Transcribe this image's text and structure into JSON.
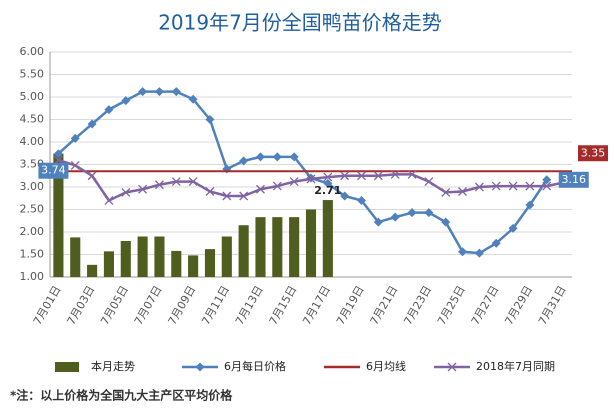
{
  "chart_data": {
    "type": "combo",
    "title": "2019年7月份全国鸭苗价格走势",
    "note": "*注：以上价格为全国九大主产区平均价格",
    "categories": [
      "7月01日",
      null,
      "7月03日",
      null,
      "7月05日",
      null,
      "7月07日",
      null,
      "7月09日",
      null,
      "7月11日",
      null,
      "7月13日",
      null,
      "7月15日",
      null,
      "7月17日",
      null,
      "7月19日",
      null,
      "7月21日",
      null,
      "7月23日",
      null,
      "7月25日",
      null,
      "7月27日",
      null,
      "7月29日",
      null,
      "7月31日"
    ],
    "ylim": [
      1,
      6
    ],
    "yticks": [
      {
        "value": 1,
        "label": "1.00"
      },
      {
        "value": 1.5,
        "label": "1.50"
      },
      {
        "value": 2,
        "label": "2.00"
      },
      {
        "value": 2.5,
        "label": "2.50"
      },
      {
        "value": 3,
        "label": "3.00"
      },
      {
        "value": 3.5,
        "label": "3.50"
      },
      {
        "value": 4,
        "label": "4.00"
      },
      {
        "value": 4.5,
        "label": "4.50"
      },
      {
        "value": 5,
        "label": "5.00"
      },
      {
        "value": 5.5,
        "label": "5.50"
      },
      {
        "value": 6,
        "label": "6.00"
      }
    ],
    "grid": true,
    "legend": "bottom",
    "series": [
      {
        "name": "本月走势",
        "type": "bar",
        "color": "#4f5d1f",
        "values": [
          3.74,
          1.88,
          1.27,
          1.57,
          1.8,
          1.9,
          1.9,
          1.58,
          1.48,
          1.62,
          1.9,
          2.15,
          2.33,
          2.33,
          2.33,
          2.5,
          2.71,
          null,
          null,
          null,
          null,
          null,
          null,
          null,
          null,
          null,
          null,
          null,
          null,
          null,
          null
        ],
        "value_labels": [
          null,
          null,
          null,
          null,
          null,
          null,
          null,
          null,
          null,
          null,
          null,
          null,
          null,
          null,
          null,
          null,
          "2.71",
          null,
          null,
          null,
          null,
          null,
          null,
          null,
          null,
          null,
          null,
          null,
          null,
          null,
          null
        ]
      },
      {
        "name": "6月每日价格",
        "type": "line",
        "marker": "diamond",
        "color": "#4f81bd",
        "values": [
          3.74,
          4.08,
          4.4,
          4.72,
          4.92,
          5.12,
          5.12,
          5.12,
          4.95,
          4.5,
          3.4,
          3.58,
          3.67,
          3.67,
          3.67,
          3.2,
          3.08,
          2.8,
          2.7,
          2.22,
          2.33,
          2.43,
          2.43,
          2.22,
          1.56,
          1.53,
          1.75,
          2.08,
          2.6,
          3.16,
          null
        ],
        "value_labels": [
          "3.74",
          null,
          null,
          null,
          null,
          null,
          null,
          null,
          null,
          null,
          null,
          null,
          null,
          null,
          null,
          null,
          null,
          null,
          null,
          null,
          null,
          null,
          null,
          null,
          null,
          null,
          null,
          null,
          null,
          "3.16",
          null
        ]
      },
      {
        "name": "6月均线",
        "type": "line",
        "marker": "none",
        "color": "#a52a2a",
        "values": [
          3.35,
          3.35,
          3.35,
          3.35,
          3.35,
          3.35,
          3.35,
          3.35,
          3.35,
          3.35,
          3.35,
          3.35,
          3.35,
          3.35,
          3.35,
          3.35,
          3.35,
          3.35,
          3.35,
          3.35,
          3.35,
          3.35,
          3.35,
          3.35,
          3.35,
          3.35,
          3.35,
          3.35,
          3.35,
          3.35,
          3.35
        ],
        "value_labels": [
          null,
          null,
          null,
          null,
          null,
          null,
          null,
          null,
          null,
          null,
          null,
          null,
          null,
          null,
          null,
          null,
          null,
          null,
          null,
          null,
          null,
          null,
          null,
          null,
          null,
          null,
          null,
          null,
          null,
          null,
          "3.35"
        ]
      },
      {
        "name": "2018年7月同期",
        "type": "line",
        "marker": "x",
        "color": "#8064a2",
        "values": [
          3.6,
          3.48,
          3.25,
          2.7,
          2.88,
          2.95,
          3.05,
          3.12,
          3.12,
          2.9,
          2.8,
          2.8,
          2.95,
          3.02,
          3.12,
          3.18,
          3.22,
          3.25,
          3.25,
          3.25,
          3.28,
          3.28,
          3.12,
          2.88,
          2.9,
          3.0,
          3.02,
          3.02,
          3.02,
          3.02,
          3.1
        ]
      }
    ]
  }
}
